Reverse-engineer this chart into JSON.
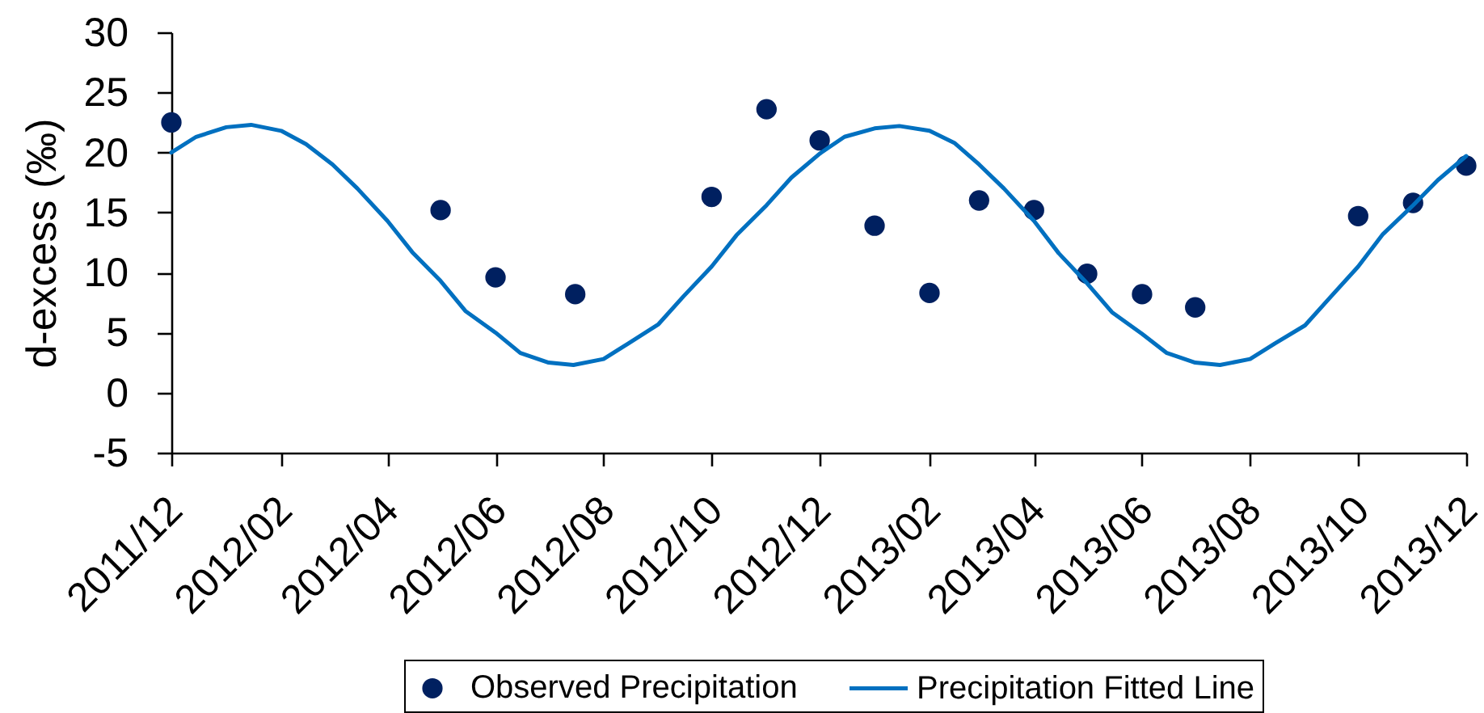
{
  "chart_data": {
    "type": "scatter",
    "ylabel": "d-excess (‰)",
    "legend": "bottom",
    "xlim": [
      "2011-12",
      "2013-12"
    ],
    "xticks": [
      {
        "value": "2011-12",
        "label": "2011/12"
      },
      {
        "value": "2012-02",
        "label": "2012/02"
      },
      {
        "value": "2012-04",
        "label": "2012/04"
      },
      {
        "value": "2012-06",
        "label": "2012/06"
      },
      {
        "value": "2012-08",
        "label": "2012/08"
      },
      {
        "value": "2012-10",
        "label": "2012/10"
      },
      {
        "value": "2012-12",
        "label": "2012/12"
      },
      {
        "value": "2013-02",
        "label": "2013/02"
      },
      {
        "value": "2013-04",
        "label": "2013/04"
      },
      {
        "value": "2013-06",
        "label": "2013/06"
      },
      {
        "value": "2013-08",
        "label": "2013/08"
      },
      {
        "value": "2013-10",
        "label": "2013/10"
      },
      {
        "value": "2013-12",
        "label": "2013/12"
      }
    ],
    "ylim": [
      -5,
      30
    ],
    "yticks": [
      -5,
      0,
      5,
      10,
      15,
      20,
      25,
      30
    ],
    "series": [
      {
        "name": "Observed Precipitation",
        "marker": "circle",
        "color": "#002060",
        "x": [
          "2011-12",
          "2012-05",
          "2012-06",
          "2012-07-16",
          "2012-10",
          "2012-11",
          "2012-12",
          "2013-01",
          "2013-02",
          "2013-03",
          "2013-04",
          "2013-05",
          "2013-06",
          "2013-07",
          "2013-10",
          "2013-11",
          "2013-12"
        ],
        "values": [
          22.5,
          15.2,
          9.6,
          8.2,
          16.3,
          23.6,
          21.0,
          13.9,
          8.3,
          16.0,
          15.2,
          9.9,
          8.2,
          7.1,
          14.7,
          15.8,
          18.9
        ]
      },
      {
        "name": "Precipitation Fitted Line",
        "type": "line",
        "color": "#0070c0",
        "x": [
          "2011-12-01",
          "2011-12-15",
          "2012-01-01",
          "2012-01-15",
          "2012-02-01",
          "2012-02-15",
          "2012-03-01",
          "2012-03-15",
          "2012-04-01",
          "2012-04-15",
          "2012-05-01",
          "2012-05-15",
          "2012-06-01",
          "2012-06-15",
          "2012-07-01",
          "2012-07-15",
          "2012-08-01",
          "2012-08-15",
          "2012-09-01",
          "2012-09-15",
          "2012-10-01",
          "2012-10-15",
          "2012-11-01",
          "2012-11-15",
          "2012-12-01",
          "2012-12-15",
          "2013-01-01",
          "2013-01-15",
          "2013-02-01",
          "2013-02-15",
          "2013-03-01",
          "2013-03-15",
          "2013-04-01",
          "2013-04-15",
          "2013-05-01",
          "2013-05-15",
          "2013-06-01",
          "2013-06-15",
          "2013-07-01",
          "2013-07-15",
          "2013-08-01",
          "2013-08-15",
          "2013-09-01",
          "2013-09-15",
          "2013-10-01",
          "2013-10-15",
          "2013-11-01",
          "2013-11-15",
          "2013-12-01"
        ],
        "values": [
          20.0,
          21.3,
          22.1,
          22.3,
          21.8,
          20.7,
          19.0,
          17.0,
          14.3,
          11.7,
          9.3,
          6.8,
          5.0,
          3.3,
          2.5,
          2.3,
          2.8,
          4.1,
          5.7,
          8.0,
          10.5,
          13.1,
          15.6,
          17.9,
          19.9,
          21.3,
          22.0,
          22.2,
          21.8,
          20.8,
          19.0,
          17.0,
          14.3,
          11.6,
          9.1,
          6.7,
          4.9,
          3.3,
          2.5,
          2.3,
          2.8,
          4.1,
          5.6,
          7.9,
          10.5,
          13.2,
          15.6,
          17.7,
          19.7
        ]
      }
    ]
  }
}
